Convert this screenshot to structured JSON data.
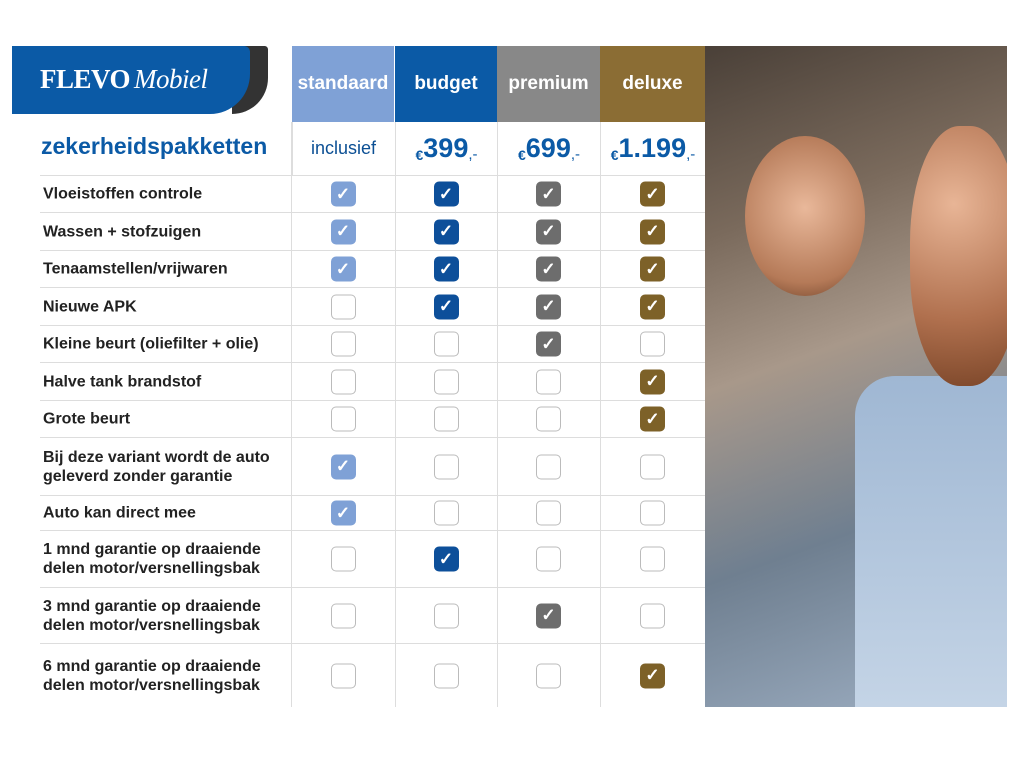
{
  "brand": {
    "name": "FLEVO",
    "name_italic": "Mobiel"
  },
  "title": "zekerheidspakketten",
  "packages": [
    {
      "name": "standaard",
      "price": "inclusief",
      "color": "#7fa1d6",
      "check": "#7fa1d6"
    },
    {
      "name": "budget",
      "currency": "€",
      "price": "399",
      "suffix": ",-",
      "color": "#0b5aa6",
      "check": "#0d4f9a"
    },
    {
      "name": "premium",
      "currency": "€",
      "price": "699",
      "suffix": ",-",
      "color": "#888888",
      "check": "#6d6d6d"
    },
    {
      "name": "deluxe",
      "currency": "€",
      "price": "1.199",
      "suffix": ",-",
      "color": "#8b6d34",
      "check": "#7d6128"
    }
  ],
  "rows": [
    {
      "label": "Vloeistoffen controle",
      "checks": [
        1,
        1,
        1,
        1
      ]
    },
    {
      "label": "Wassen + stofzuigen",
      "checks": [
        1,
        1,
        1,
        1
      ]
    },
    {
      "label": "Tenaamstellen/vrijwaren",
      "checks": [
        1,
        1,
        1,
        1
      ]
    },
    {
      "label": "Nieuwe APK",
      "checks": [
        0,
        1,
        1,
        1
      ]
    },
    {
      "label": "Kleine beurt (oliefilter + olie)",
      "checks": [
        0,
        0,
        1,
        0
      ]
    },
    {
      "label": "Halve tank brandstof",
      "checks": [
        0,
        0,
        0,
        1
      ]
    },
    {
      "label": "Grote beurt",
      "checks": [
        0,
        0,
        0,
        1
      ]
    },
    {
      "label": "Bij deze variant wordt de auto geleverd zonder garantie",
      "checks": [
        1,
        0,
        0,
        0
      ]
    },
    {
      "label": "Auto kan direct mee",
      "checks": [
        1,
        0,
        0,
        0
      ]
    },
    {
      "label": "1 mnd garantie op draaiende delen motor/versnellingsbak",
      "checks": [
        0,
        1,
        0,
        0
      ]
    },
    {
      "label": "3 mnd garantie op draaiende delen motor/versnellingsbak",
      "checks": [
        0,
        0,
        1,
        0
      ]
    },
    {
      "label": "6 mnd garantie op draaiende delen motor/versnellingsbak",
      "checks": [
        0,
        0,
        0,
        1
      ]
    }
  ]
}
